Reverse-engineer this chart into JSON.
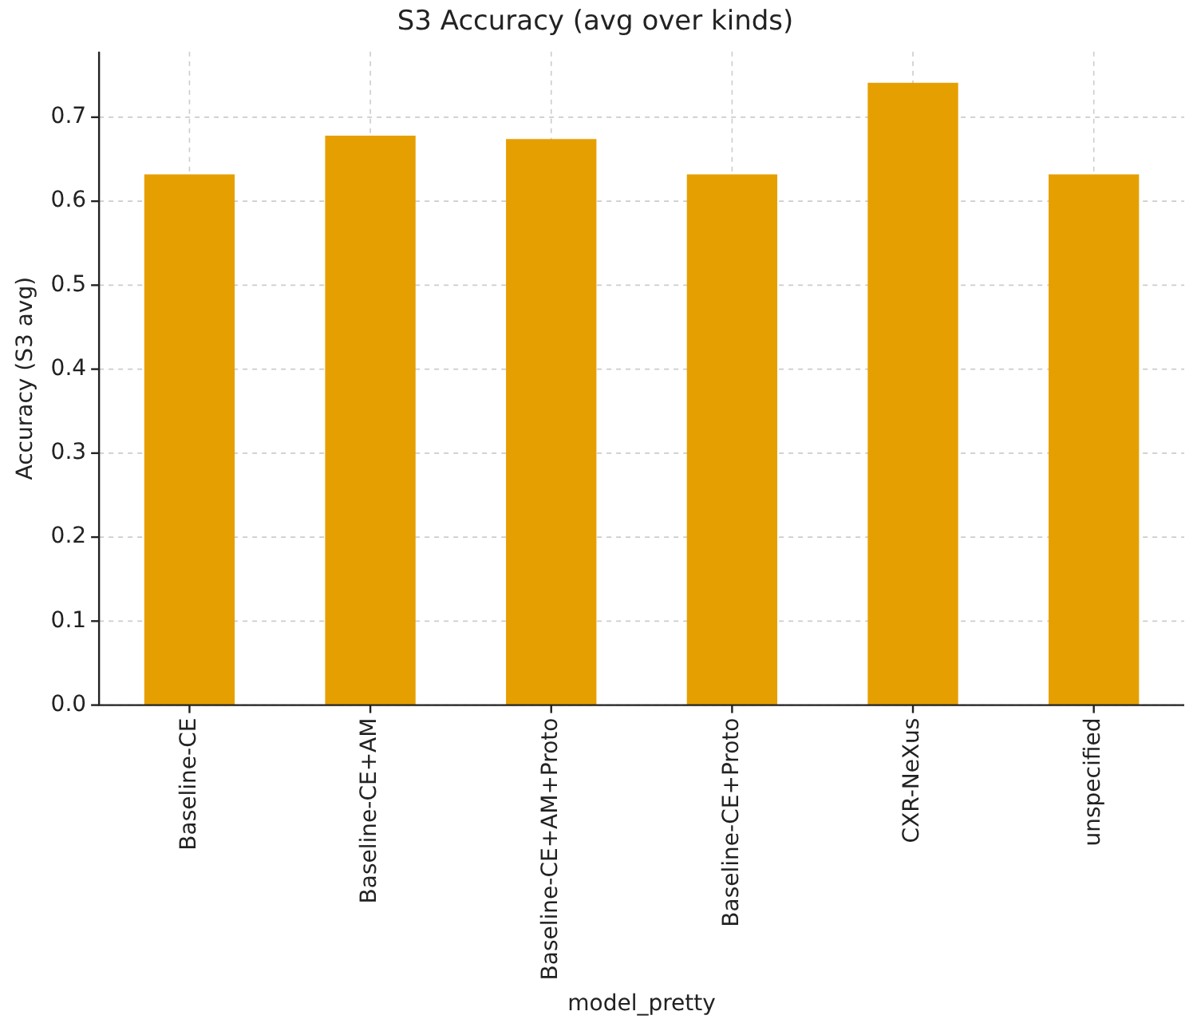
{
  "chart_data": {
    "type": "bar",
    "title": "S3 Accuracy (avg over kinds)",
    "xlabel": "model_pretty",
    "ylabel": "Accuracy (S3 avg)",
    "categories": [
      "Baseline-CE",
      "Baseline-CE+AM",
      "Baseline-CE+AM+Proto",
      "Baseline-CE+Proto",
      "CXR-NeXus",
      "unspecified"
    ],
    "values": [
      0.632,
      0.678,
      0.674,
      0.632,
      0.741,
      0.632
    ],
    "color": "#e69f00",
    "ylim": [
      0,
      0.778
    ],
    "yticks": [
      {
        "value": 0,
        "label": "0.0"
      },
      {
        "value": 0.1,
        "label": "0.1"
      },
      {
        "value": 0.2,
        "label": "0.2"
      },
      {
        "value": 0.3,
        "label": "0.3"
      },
      {
        "value": 0.4,
        "label": "0.4"
      },
      {
        "value": 0.5,
        "label": "0.5"
      },
      {
        "value": 0.6,
        "label": "0.6"
      },
      {
        "value": 0.7,
        "label": "0.7"
      }
    ],
    "grid": true,
    "legend": false
  }
}
